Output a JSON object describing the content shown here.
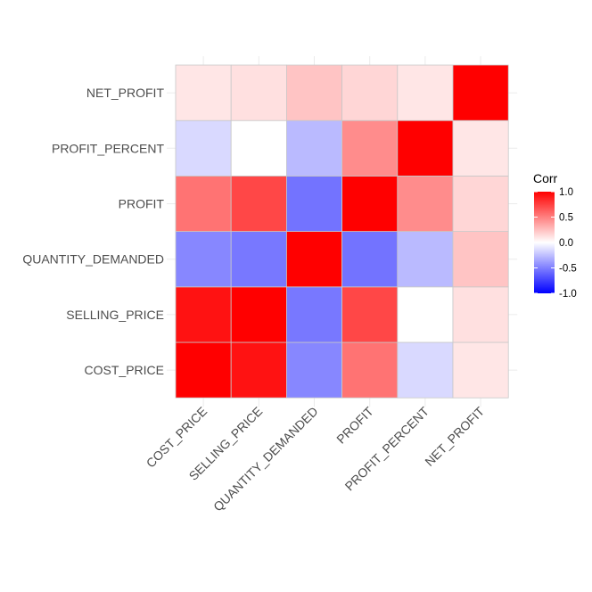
{
  "chart_data": {
    "type": "heatmap",
    "variables": [
      "COST_PRICE",
      "SELLING_PRICE",
      "QUANTITY_DEMANDED",
      "PROFIT",
      "PROFIT_PERCENT",
      "NET_PROFIT"
    ],
    "matrix": [
      [
        1.0,
        0.93,
        -0.47,
        0.55,
        -0.15,
        0.1
      ],
      [
        0.93,
        1.0,
        -0.53,
        0.72,
        0.0,
        0.12
      ],
      [
        -0.47,
        -0.53,
        1.0,
        -0.55,
        -0.27,
        0.23
      ],
      [
        0.55,
        0.72,
        -0.55,
        1.0,
        0.45,
        0.16
      ],
      [
        -0.15,
        0.0,
        -0.27,
        0.45,
        1.0,
        0.1
      ],
      [
        0.1,
        0.12,
        0.23,
        0.16,
        0.1,
        1.0
      ]
    ],
    "legend": {
      "title": "Corr",
      "ticks": [
        {
          "value": 1.0,
          "label": "1.0"
        },
        {
          "value": 0.5,
          "label": "0.5"
        },
        {
          "value": 0.0,
          "label": "0.0"
        },
        {
          "value": -0.5,
          "label": "-0.5"
        },
        {
          "value": -1.0,
          "label": "-1.0"
        }
      ],
      "range": [
        -1,
        1
      ],
      "position": "right"
    },
    "colors": {
      "low": "#0000ff",
      "mid": "#ffffff",
      "high": "#ff0000",
      "cell_border": "#c8c8c8",
      "tick_text": "#4d4d4d",
      "grid": "#ebebeb"
    },
    "grid": true
  }
}
